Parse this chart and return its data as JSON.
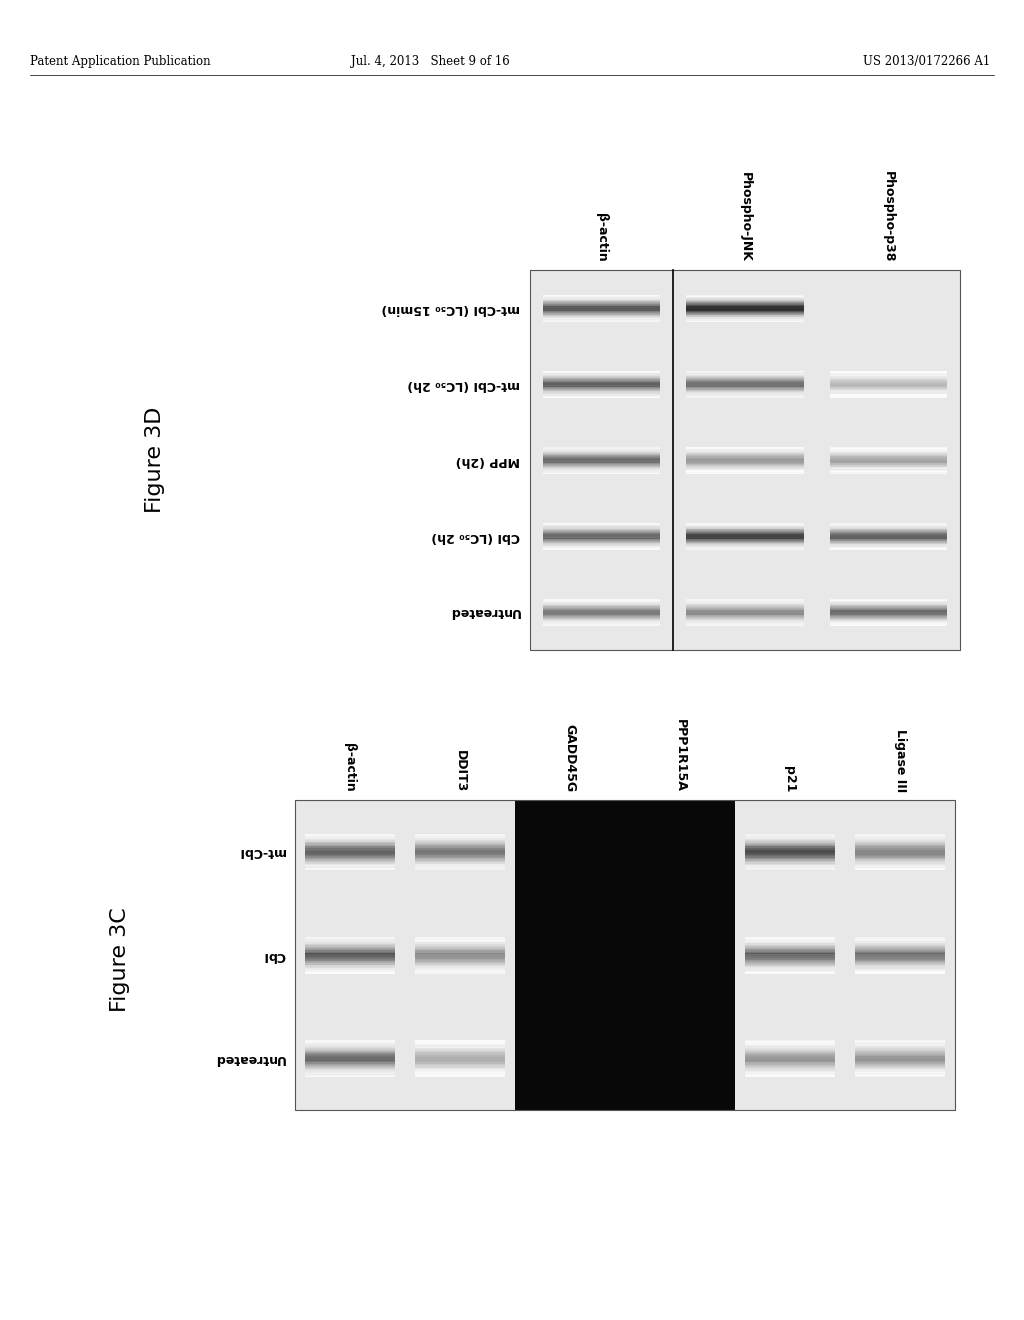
{
  "page_header_left": "Patent Application Publication",
  "page_header_center": "Jul. 4, 2013   Sheet 9 of 16",
  "page_header_right": "US 2013/0172266 A1",
  "fig3D": {
    "label": "Figure 3D",
    "col_labels": [
      "β-actin",
      "Phospho-JNK",
      "Phospho-p38"
    ],
    "row_labels_rotated": [
      "mt-CbI (LC₅₀ 15min)",
      "mt-CbI (LC₅₀ 2h)",
      "MPP (2h)",
      "CbI (LC₅₀ 2h)",
      "Untreated"
    ],
    "bands": {
      "bactin": [
        0.75,
        0.7,
        0.65,
        0.68,
        0.6
      ],
      "pjnk": [
        0.95,
        0.65,
        0.45,
        0.85,
        0.5
      ],
      "pp38": [
        0.0,
        0.3,
        0.4,
        0.7,
        0.65
      ]
    }
  },
  "fig3C": {
    "label": "Figure 3C",
    "col_labels": [
      "β-actin",
      "DDIT3",
      "GADD45G",
      "PPP1R15A",
      "p21",
      "Ligase III"
    ],
    "row_labels_rotated": [
      "mt-CbI",
      "CbI",
      "Untreated"
    ],
    "bands": {
      "bactin": [
        0.7,
        0.7,
        0.65
      ],
      "ddit3": [
        0.6,
        0.5,
        0.35
      ],
      "gadd45g": [
        0.95,
        0.95,
        0.95
      ],
      "ppp1r15a": [
        0.95,
        0.95,
        0.95
      ],
      "p21": [
        0.8,
        0.65,
        0.45
      ],
      "ligase3": [
        0.55,
        0.6,
        0.45
      ]
    }
  }
}
